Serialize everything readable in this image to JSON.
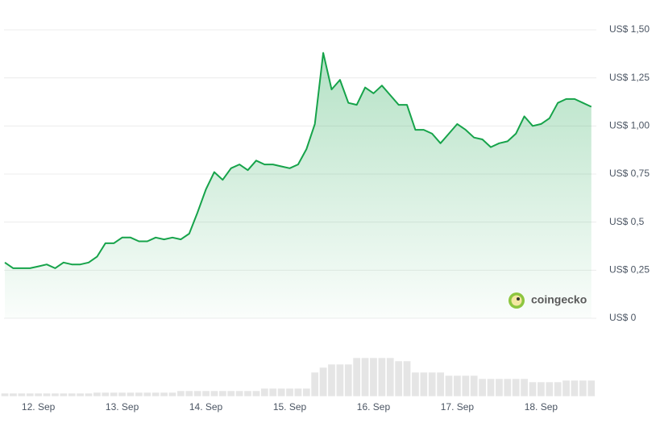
{
  "chart_data": {
    "type": "area",
    "color": "#16a34a",
    "grid": true,
    "watermark": "coingecko",
    "x": [
      11.6,
      11.7,
      11.8,
      11.9,
      12.0,
      12.1,
      12.2,
      12.3,
      12.4,
      12.5,
      12.6,
      12.7,
      12.8,
      12.9,
      13.0,
      13.1,
      13.2,
      13.3,
      13.4,
      13.5,
      13.6,
      13.7,
      13.8,
      13.9,
      14.0,
      14.1,
      14.2,
      14.3,
      14.4,
      14.5,
      14.6,
      14.7,
      14.8,
      14.9,
      15.0,
      15.1,
      15.2,
      15.3,
      15.4,
      15.5,
      15.6,
      15.7,
      15.8,
      15.9,
      16.0,
      16.1,
      16.2,
      16.3,
      16.4,
      16.5,
      16.6,
      16.7,
      16.8,
      16.9,
      17.0,
      17.1,
      17.2,
      17.3,
      17.4,
      17.5,
      17.6,
      17.7,
      17.8,
      17.9,
      18.0,
      18.1,
      18.2,
      18.3,
      18.4,
      18.5,
      18.6
    ],
    "values": [
      0.29,
      0.26,
      0.26,
      0.26,
      0.27,
      0.28,
      0.26,
      0.29,
      0.28,
      0.28,
      0.29,
      0.32,
      0.39,
      0.39,
      0.42,
      0.42,
      0.4,
      0.4,
      0.42,
      0.41,
      0.42,
      0.41,
      0.44,
      0.55,
      0.67,
      0.76,
      0.72,
      0.78,
      0.8,
      0.77,
      0.82,
      0.8,
      0.8,
      0.79,
      0.78,
      0.8,
      0.88,
      1.01,
      1.38,
      1.19,
      1.24,
      1.12,
      1.11,
      1.2,
      1.17,
      1.21,
      1.16,
      1.11,
      1.11,
      0.98,
      0.98,
      0.96,
      0.91,
      0.96,
      1.01,
      0.98,
      0.94,
      0.93,
      0.89,
      0.91,
      0.92,
      0.96,
      1.05,
      1.0,
      1.01,
      1.04,
      1.12,
      1.14,
      1.14,
      1.12,
      1.1
    ],
    "volume": [
      4,
      4,
      4,
      4,
      4,
      4,
      4,
      4,
      4,
      4,
      4,
      5,
      5,
      5,
      5,
      5,
      5,
      5,
      5,
      5,
      5,
      7,
      7,
      7,
      7,
      7,
      7,
      7,
      7,
      7,
      7,
      10,
      10,
      10,
      10,
      10,
      10,
      30,
      36,
      40,
      40,
      40,
      48,
      48,
      48,
      48,
      48,
      44,
      44,
      30,
      30,
      30,
      30,
      26,
      26,
      26,
      26,
      22,
      22,
      22,
      22,
      22,
      22,
      18,
      18,
      18,
      18,
      20,
      20,
      20,
      20
    ],
    "volume_lim": [
      0,
      60
    ],
    "xlim": [
      11.59,
      18.66
    ],
    "xticks": [
      {
        "value": 12,
        "label": "12. Sep"
      },
      {
        "value": 13,
        "label": "13. Sep"
      },
      {
        "value": 14,
        "label": "14. Sep"
      },
      {
        "value": 15,
        "label": "15. Sep"
      },
      {
        "value": 16,
        "label": "16. Sep"
      },
      {
        "value": 17,
        "label": "17. Sep"
      },
      {
        "value": 18,
        "label": "18. Sep"
      }
    ],
    "ylim": [
      0,
      1.5
    ],
    "yticks": [
      {
        "value": 0,
        "label": "US$ 0"
      },
      {
        "value": 0.25,
        "label": "US$ 0,25"
      },
      {
        "value": 0.5,
        "label": "US$ 0,5"
      },
      {
        "value": 0.75,
        "label": "US$ 0,75"
      },
      {
        "value": 1,
        "label": "US$ 1,00"
      },
      {
        "value": 1.25,
        "label": "US$ 1,25"
      },
      {
        "value": 1.5,
        "label": "US$ 1,50"
      }
    ]
  }
}
